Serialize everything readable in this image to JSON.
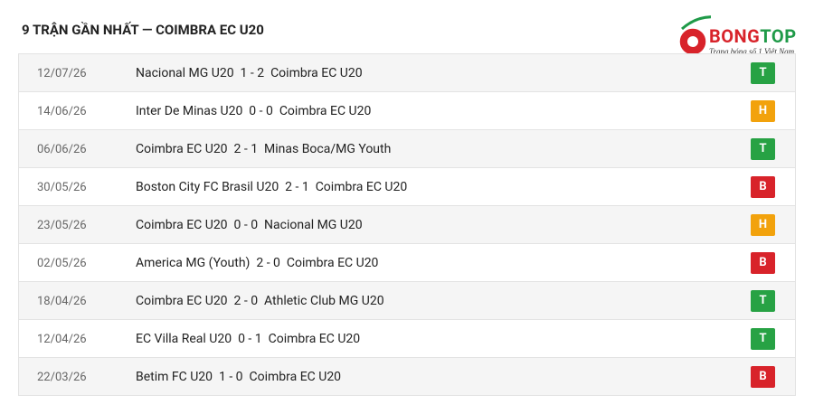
{
  "header": {
    "title": "9 TRẬN GẦN NHẤT — COIMBRA EC U20"
  },
  "logo": {
    "brand_a": "BONG",
    "brand_b": "TOP",
    "tagline": "Trang bóng số 1 Việt Nam"
  },
  "matches": [
    {
      "date": "12/07/26",
      "home": "Nacional MG U20",
      "score": "1 - 2",
      "away": "Coimbra EC U20",
      "result": "T"
    },
    {
      "date": "14/06/26",
      "home": "Inter De Minas U20",
      "score": "0 - 0",
      "away": "Coimbra EC U20",
      "result": "H"
    },
    {
      "date": "06/06/26",
      "home": "Coimbra EC U20",
      "score": "2 - 1",
      "away": "Minas Boca/MG Youth",
      "result": "T"
    },
    {
      "date": "30/05/26",
      "home": "Boston City FC Brasil U20",
      "score": "2 - 1",
      "away": "Coimbra EC U20",
      "result": "B"
    },
    {
      "date": "23/05/26",
      "home": "Coimbra EC U20",
      "score": "0 - 0",
      "away": "Nacional MG U20",
      "result": "H"
    },
    {
      "date": "02/05/26",
      "home": "America MG (Youth)",
      "score": "2 - 0",
      "away": "Coimbra EC U20",
      "result": "B"
    },
    {
      "date": "18/04/26",
      "home": "Coimbra EC U20",
      "score": "2 - 0",
      "away": "Athletic Club MG U20",
      "result": "T"
    },
    {
      "date": "12/04/26",
      "home": "EC Villa Real U20",
      "score": "0 - 1",
      "away": "Coimbra EC U20",
      "result": "T"
    },
    {
      "date": "22/03/26",
      "home": "Betim FC U20",
      "score": "1 - 0",
      "away": "Coimbra EC U20",
      "result": "B"
    }
  ]
}
